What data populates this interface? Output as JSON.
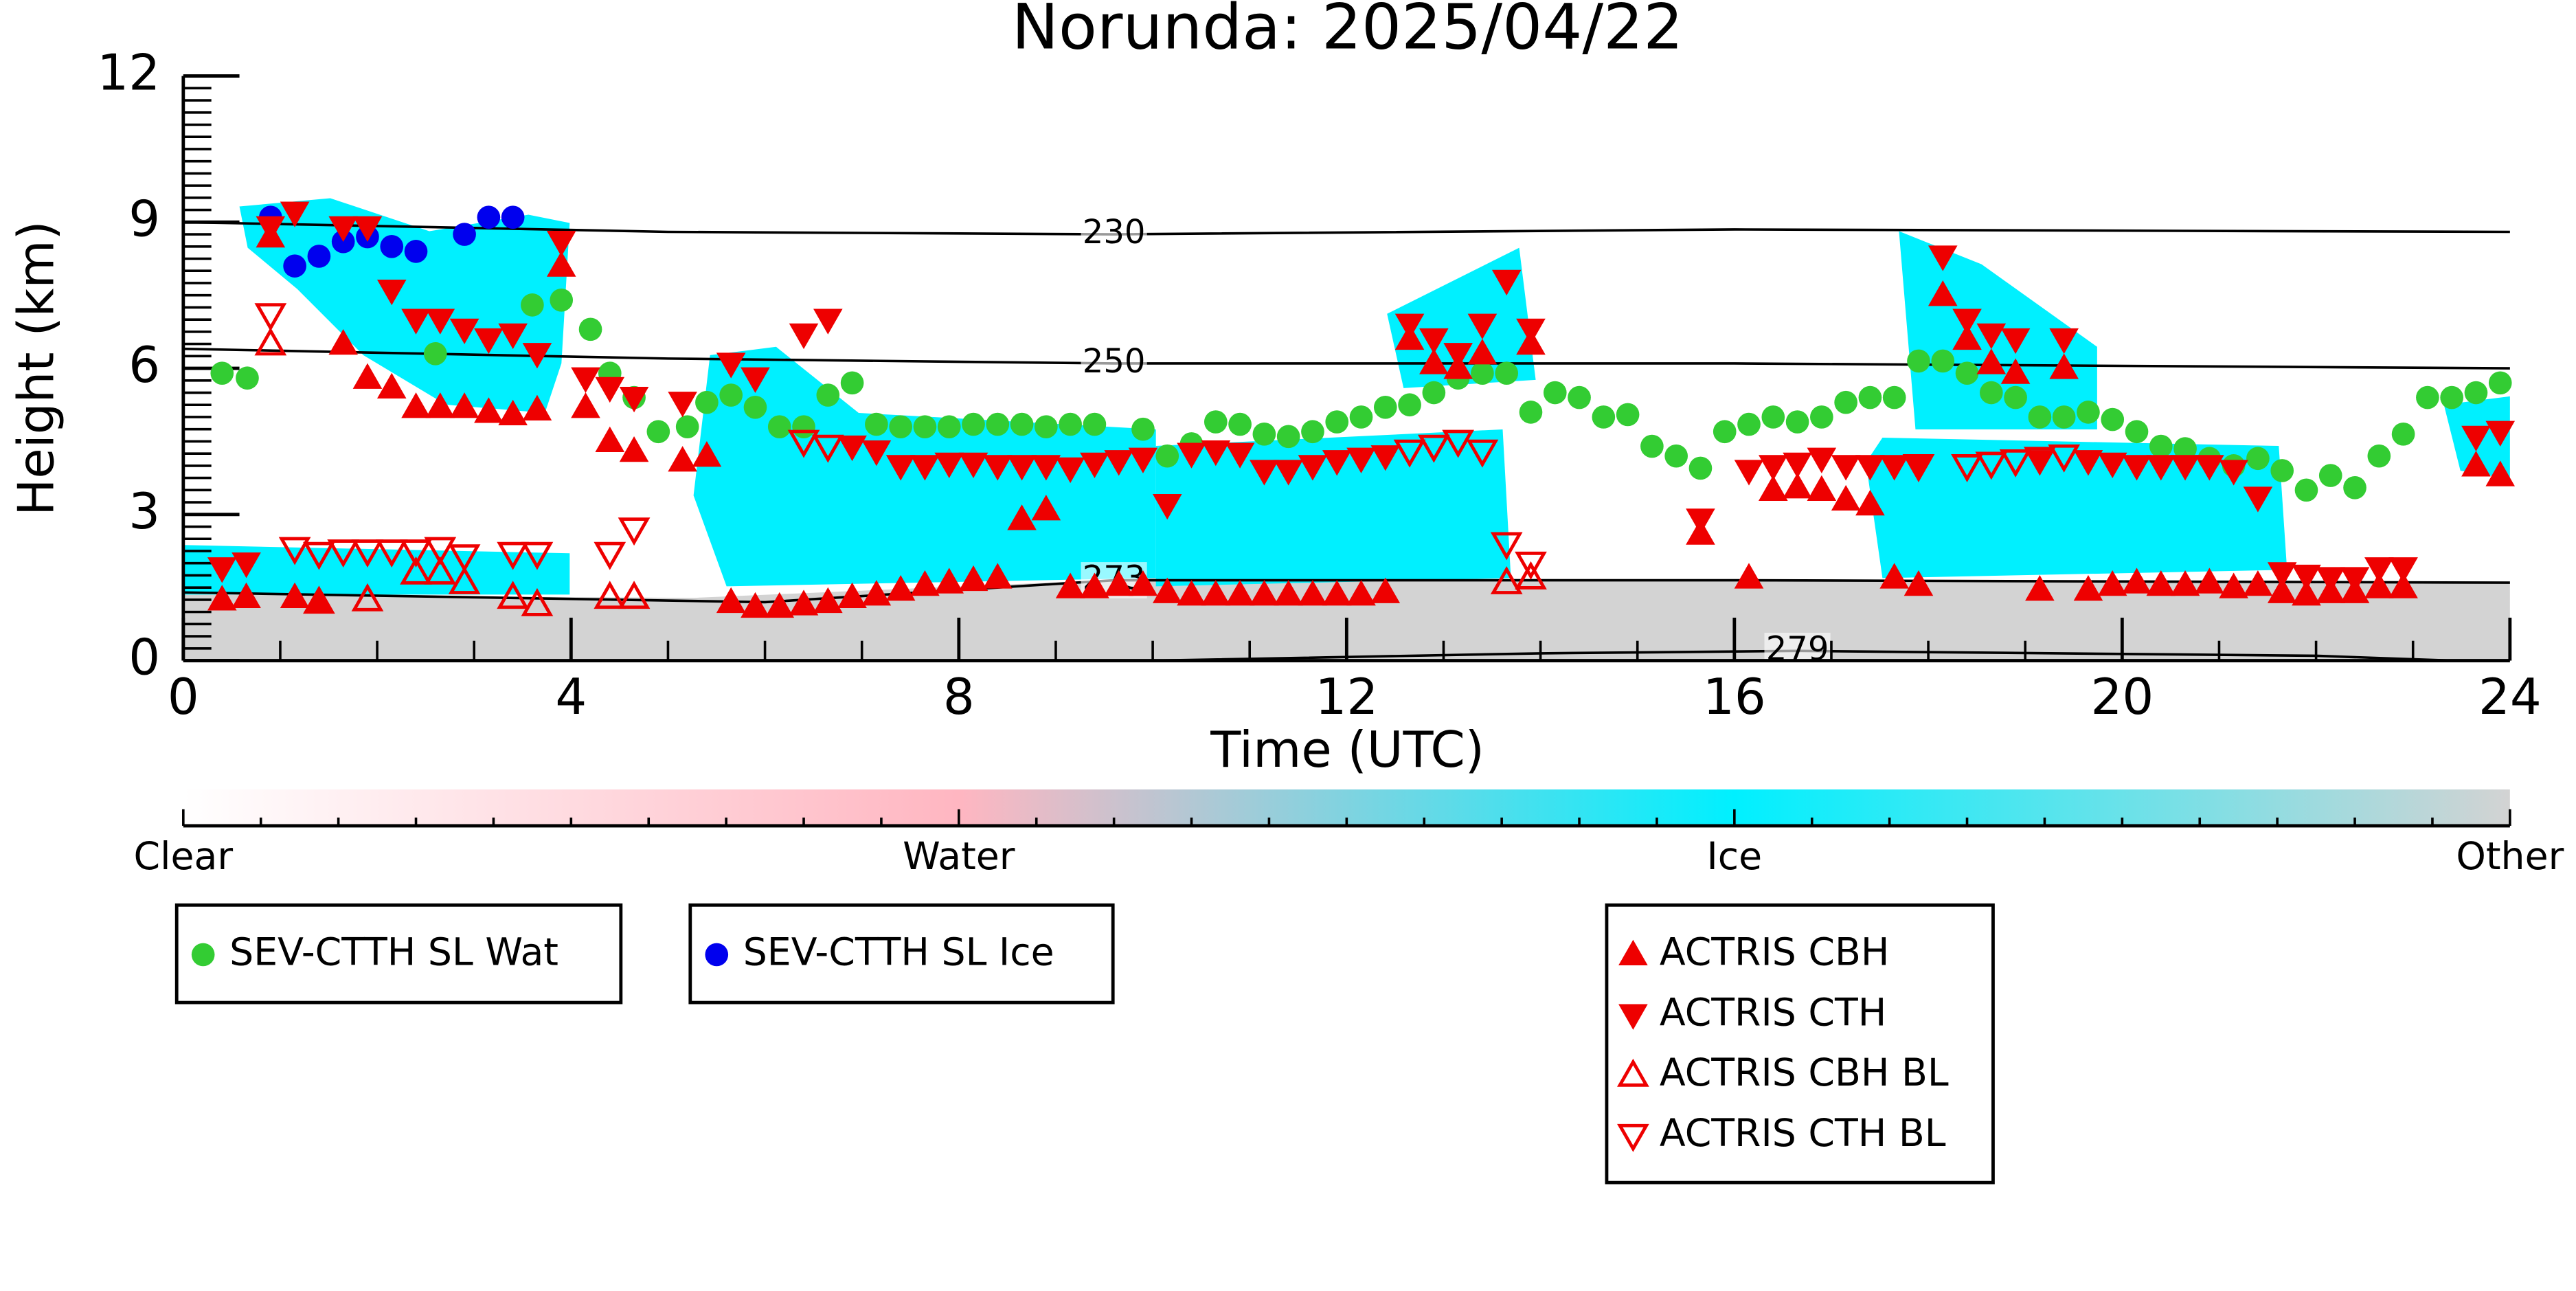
{
  "chart_data": {
    "type": "scatter",
    "title": "Norunda: 2025/04/22",
    "x_label": "Time (UTC)",
    "y_label": "Height (km)",
    "xlim": [
      0,
      24
    ],
    "xticks": [
      0,
      4,
      8,
      12,
      16,
      20,
      24
    ],
    "xminor": 1,
    "ylim": [
      0,
      12
    ],
    "yticks": [
      0,
      3,
      6,
      9,
      12
    ],
    "yminor": 0.25,
    "series": [
      {
        "name": "SEV-CTTH SL Wat",
        "color": "#33cc33",
        "marker": "circle",
        "x": [
          0.4,
          0.66,
          2.6,
          3.6,
          3.9,
          4.2,
          4.4,
          4.65,
          4.9,
          5.2,
          5.4,
          5.65,
          5.9,
          6.15,
          6.4,
          6.65,
          6.9,
          7.15,
          7.4,
          7.65,
          7.9,
          8.15,
          8.4,
          8.65,
          8.9,
          9.15,
          9.4,
          9.9,
          10.15,
          10.4,
          10.65,
          10.9,
          11.15,
          11.4,
          11.65,
          11.9,
          12.15,
          12.4,
          12.65,
          12.9,
          13.15,
          13.4,
          13.65,
          13.9,
          14.15,
          14.4,
          14.65,
          14.9,
          15.15,
          15.4,
          15.65,
          15.9,
          16.15,
          16.4,
          16.65,
          16.9,
          17.15,
          17.4,
          17.65,
          17.9,
          18.15,
          18.4,
          18.65,
          18.9,
          19.15,
          19.4,
          19.65,
          19.9,
          20.15,
          20.4,
          20.65,
          20.9,
          21.15,
          21.4,
          21.65,
          21.9,
          22.15,
          22.4,
          22.65,
          22.9,
          23.15,
          23.4,
          23.65,
          23.9
        ],
        "values": [
          5.9,
          5.8,
          6.3,
          7.3,
          7.4,
          6.8,
          5.9,
          5.4,
          4.7,
          4.8,
          5.3,
          5.45,
          5.2,
          4.8,
          4.8,
          5.45,
          5.7,
          4.85,
          4.8,
          4.8,
          4.8,
          4.85,
          4.85,
          4.85,
          4.8,
          4.85,
          4.85,
          4.75,
          4.2,
          4.45,
          4.9,
          4.85,
          4.65,
          4.6,
          4.7,
          4.9,
          5.0,
          5.2,
          5.25,
          5.5,
          5.8,
          5.9,
          5.9,
          5.1,
          5.5,
          5.4,
          5.0,
          5.05,
          4.4,
          4.2,
          3.95,
          4.7,
          4.85,
          5.0,
          4.9,
          5.0,
          5.3,
          5.4,
          5.4,
          6.15,
          6.15,
          5.9,
          5.5,
          5.4,
          5.0,
          5.0,
          5.1,
          4.95,
          4.7,
          4.4,
          4.35,
          4.15,
          4.0,
          4.15,
          3.9,
          3.5,
          3.8,
          3.55,
          4.2,
          4.65,
          5.4,
          5.4,
          5.5,
          5.7
        ]
      },
      {
        "name": "SEV-CTTH SL Ice",
        "color": "#0000ee",
        "marker": "circle",
        "x": [
          0.9,
          1.15,
          1.4,
          1.65,
          1.9,
          2.15,
          2.4,
          2.9,
          3.15,
          3.4
        ],
        "values": [
          9.1,
          8.1,
          8.3,
          8.6,
          8.7,
          8.5,
          8.4,
          8.75,
          9.1,
          9.1
        ]
      },
      {
        "name": "ACTRIS CBH",
        "color": "#ee0000",
        "marker": "triangle-up",
        "x": [
          0.4,
          0.65,
          0.9,
          1.15,
          1.4,
          1.65,
          1.9,
          2.15,
          2.4,
          2.65,
          2.9,
          3.15,
          3.4,
          3.65,
          3.9,
          4.15,
          4.4,
          4.65,
          5.15,
          5.4,
          5.65,
          5.9,
          6.15,
          6.4,
          6.65,
          6.9,
          7.15,
          7.4,
          7.65,
          7.9,
          8.15,
          8.4,
          8.65,
          8.9,
          9.15,
          9.4,
          9.65,
          9.9,
          10.15,
          10.4,
          10.65,
          10.9,
          11.15,
          11.4,
          11.65,
          11.9,
          12.15,
          12.4,
          12.65,
          12.9,
          13.15,
          13.4,
          13.9,
          15.65,
          16.15,
          16.4,
          16.65,
          16.9,
          17.15,
          17.4,
          17.65,
          17.9,
          18.15,
          18.4,
          18.65,
          18.9,
          19.15,
          19.4,
          19.65,
          19.9,
          20.15,
          20.4,
          20.65,
          20.9,
          21.15,
          21.4,
          21.65,
          21.9,
          22.15,
          22.4,
          22.65,
          22.9,
          23.65,
          23.9
        ],
        "values": [
          1.25,
          1.3,
          8.7,
          1.3,
          1.2,
          6.5,
          5.8,
          5.6,
          5.2,
          5.2,
          5.2,
          5.1,
          5.05,
          5.15,
          8.1,
          5.2,
          4.5,
          4.3,
          4.1,
          4.2,
          1.2,
          1.1,
          1.1,
          1.15,
          1.2,
          1.3,
          1.35,
          1.45,
          1.55,
          1.6,
          1.65,
          1.7,
          2.9,
          3.1,
          1.5,
          1.5,
          1.55,
          1.55,
          1.4,
          1.35,
          1.35,
          1.35,
          1.35,
          1.35,
          1.35,
          1.35,
          1.35,
          1.4,
          6.6,
          6.1,
          6.0,
          6.3,
          6.5,
          2.6,
          1.7,
          3.5,
          3.55,
          3.5,
          3.3,
          3.2,
          1.7,
          1.55,
          7.5,
          6.6,
          6.1,
          5.9,
          1.45,
          6.0,
          1.45,
          1.55,
          1.6,
          1.55,
          1.55,
          1.6,
          1.5,
          1.55,
          1.4,
          1.35,
          1.4,
          1.4,
          1.5,
          1.5,
          4.0,
          3.8
        ]
      },
      {
        "name": "ACTRIS CTH",
        "color": "#ee0000",
        "marker": "triangle-down",
        "x": [
          0.4,
          0.65,
          0.9,
          1.15,
          1.65,
          1.9,
          2.15,
          2.4,
          2.65,
          2.9,
          3.15,
          3.4,
          3.65,
          3.9,
          4.15,
          4.4,
          4.65,
          5.15,
          5.65,
          5.9,
          6.4,
          6.65,
          6.9,
          7.15,
          7.4,
          7.65,
          7.9,
          8.15,
          8.4,
          8.65,
          8.9,
          9.15,
          9.4,
          9.65,
          9.9,
          10.15,
          10.4,
          10.65,
          10.9,
          11.15,
          11.4,
          11.65,
          11.9,
          12.15,
          12.4,
          12.65,
          12.9,
          13.15,
          13.4,
          13.65,
          13.9,
          15.65,
          16.15,
          16.4,
          16.65,
          16.9,
          17.15,
          17.4,
          17.65,
          17.9,
          18.15,
          18.4,
          18.65,
          18.9,
          19.15,
          19.4,
          19.65,
          19.9,
          20.15,
          20.4,
          20.65,
          20.9,
          21.15,
          21.4,
          21.65,
          21.9,
          22.15,
          22.4,
          22.65,
          22.9,
          23.65,
          23.9
        ],
        "values": [
          1.9,
          2.0,
          8.9,
          9.2,
          8.9,
          8.9,
          7.6,
          7.0,
          7.0,
          6.8,
          6.6,
          6.7,
          6.3,
          8.6,
          5.8,
          5.6,
          5.4,
          5.3,
          6.1,
          5.8,
          6.7,
          7.0,
          4.4,
          4.3,
          4.0,
          4.0,
          4.05,
          4.05,
          4.0,
          4.0,
          4.0,
          3.95,
          4.05,
          4.1,
          4.15,
          3.2,
          4.25,
          4.3,
          4.25,
          3.9,
          3.9,
          4.0,
          4.1,
          4.15,
          4.2,
          6.9,
          6.6,
          6.3,
          6.9,
          7.8,
          6.8,
          2.9,
          3.9,
          4.0,
          4.05,
          4.15,
          4.0,
          4.0,
          4.0,
          4.0,
          8.3,
          7.0,
          6.7,
          6.6,
          4.1,
          6.6,
          4.1,
          4.05,
          4.0,
          4.0,
          4.0,
          4.0,
          3.9,
          3.35,
          1.8,
          1.75,
          1.7,
          1.7,
          1.9,
          1.9,
          4.6,
          4.7
        ]
      },
      {
        "name": "ACTRIS CBH BL",
        "color": "#ee0000",
        "marker": "triangle-up-open",
        "x": [
          0.9,
          1.4,
          1.9,
          2.4,
          2.65,
          2.9,
          3.4,
          3.65,
          4.4,
          4.65,
          13.65,
          13.9
        ],
        "values": [
          6.5,
          1.2,
          1.25,
          1.8,
          1.8,
          1.6,
          1.3,
          1.15,
          1.3,
          1.3,
          1.6,
          1.7
        ]
      },
      {
        "name": "ACTRIS CTH BL",
        "color": "#ee0000",
        "marker": "triangle-down-open",
        "x": [
          0.9,
          1.15,
          1.4,
          1.65,
          1.9,
          2.15,
          2.4,
          2.65,
          2.9,
          3.4,
          3.65,
          4.4,
          4.65,
          6.4,
          6.65,
          12.65,
          12.9,
          13.15,
          13.4,
          13.65,
          13.9,
          17.9,
          18.4,
          18.65,
          18.9,
          19.15,
          19.4
        ],
        "values": [
          7.1,
          2.3,
          2.2,
          2.25,
          2.25,
          2.25,
          2.25,
          2.3,
          2.15,
          2.2,
          2.2,
          2.2,
          2.7,
          4.5,
          4.4,
          4.3,
          4.4,
          4.5,
          4.3,
          2.4,
          2.0,
          4.0,
          4.0,
          4.05,
          4.1,
          4.15,
          4.2
        ]
      }
    ],
    "contours": [
      {
        "label": "230",
        "x": [
          0,
          5,
          9.6,
          16,
          24
        ],
        "y": [
          9.0,
          8.8,
          8.75,
          8.85,
          8.8
        ]
      },
      {
        "label": "250",
        "x": [
          0,
          5,
          9.6,
          16,
          24
        ],
        "y": [
          6.4,
          6.2,
          6.1,
          6.1,
          6.0
        ]
      },
      {
        "label": "273",
        "x": [
          0,
          6,
          9.6,
          16,
          24
        ],
        "y": [
          1.4,
          1.2,
          1.65,
          1.65,
          1.6
        ]
      },
      {
        "label": "279",
        "x": [
          10,
          14,
          16.65,
          22,
          23.4
        ],
        "y": [
          0,
          0.15,
          0.2,
          0.1,
          0
        ]
      }
    ],
    "colorbar": {
      "labels": [
        "Clear",
        "Water",
        "Ice",
        "Other"
      ],
      "colors": [
        "#ffffff",
        "#ffb6c1",
        "#00f0ff",
        "#d3d3d3"
      ]
    }
  }
}
